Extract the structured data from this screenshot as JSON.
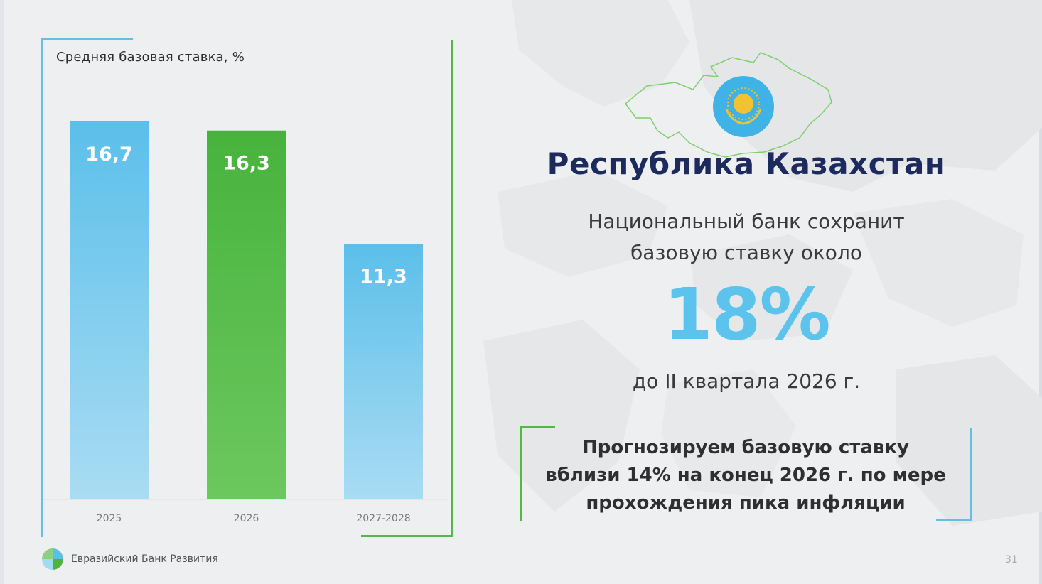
{
  "chart_data": {
    "type": "bar",
    "title": "Средняя базовая ставка, %",
    "categories": [
      "2025",
      "2026",
      "2027-2028"
    ],
    "values": [
      16.7,
      16.3,
      11.3
    ],
    "value_labels": [
      "16,7",
      "16,3",
      "11,3"
    ],
    "bar_colors": [
      "#5bbfea",
      "#4db43e",
      "#5bbfea"
    ],
    "xlabel": "",
    "ylabel": "",
    "ylim": [
      0,
      16.7
    ],
    "grid": false,
    "legend": "none"
  },
  "country": {
    "title": "Республика Казахстан"
  },
  "headline": {
    "line1": "Национальный банк сохранит",
    "line2": "базовую ставку около",
    "rate": "18%",
    "until": "до II квартала 2026 г."
  },
  "forecast": {
    "line1": "Прогнозируем базовую ставку",
    "line2": "вблизи 14% на конец 2026 г. по мере",
    "line3": "прохождения пика инфляции"
  },
  "footer": {
    "brand": "Евразийский Банк Развития",
    "page_number": "31"
  },
  "colors": {
    "accent_blue": "#5cc3ec",
    "accent_green": "#53b846",
    "navy": "#1d2a5e"
  }
}
